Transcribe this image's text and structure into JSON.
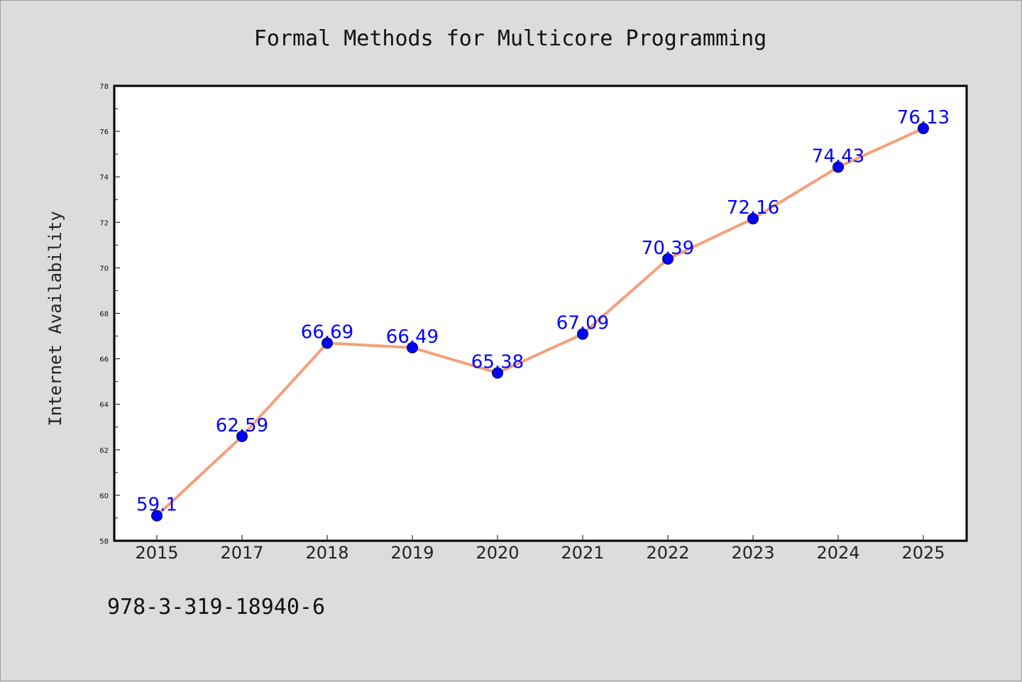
{
  "chart_data": {
    "type": "line",
    "title": "Formal Methods for Multicore Programming",
    "xlabel": "",
    "ylabel": "Internet Availability",
    "categories": [
      "2015",
      "2017",
      "2018",
      "2019",
      "2020",
      "2021",
      "2022",
      "2023",
      "2024",
      "2025"
    ],
    "series": [
      {
        "values": [
          59.1,
          62.59,
          66.69,
          66.49,
          65.38,
          67.09,
          70.39,
          72.16,
          74.43,
          76.13
        ],
        "labels": [
          "59.1",
          "62.59",
          "66.69",
          "66.49",
          "65.38",
          "67.09",
          "70.39",
          "72.16",
          "74.43",
          "76.13"
        ]
      }
    ],
    "ylim": [
      58,
      78
    ],
    "yticks": [
      58,
      60,
      62,
      64,
      66,
      68,
      70,
      72,
      74,
      76,
      78
    ],
    "grid": false,
    "legend": "none",
    "line_color": "#f4a07a",
    "marker_color": "#0000ff",
    "label_color": "#0000ff"
  },
  "footer": {
    "isbn": "978-3-319-18940-6"
  }
}
